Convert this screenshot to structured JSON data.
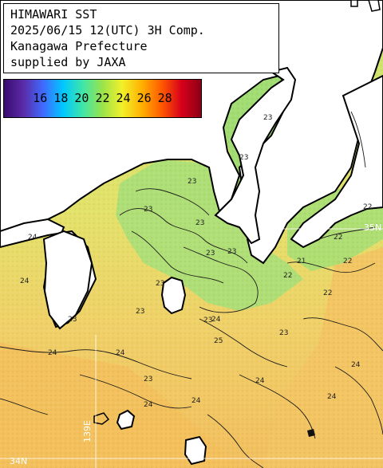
{
  "header": {
    "line1": "HIMAWARI SST",
    "line2": "2025/06/15 12(UTC) 3H Comp.",
    "line3": "Kanagawa Prefecture",
    "line4": "supplied by JAXA"
  },
  "colorbar": {
    "labels": [
      "16",
      "18",
      "20",
      "22",
      "24",
      "26",
      "28"
    ],
    "colors": [
      "#3b0b6e",
      "#5a2ca8",
      "#3f6bff",
      "#00c8ff",
      "#3fe6a8",
      "#9be34a",
      "#f2f02a",
      "#ffb000",
      "#ff5a00",
      "#d8001a",
      "#8b0016"
    ]
  },
  "contours": {
    "labels": [
      "23",
      "23",
      "23",
      "23",
      "23",
      "22",
      "22",
      "22",
      "23",
      "23",
      "23",
      "22",
      "21",
      "22",
      "23",
      "23",
      "24",
      "24",
      "24",
      "24",
      "25",
      "23",
      "23",
      "24",
      "24",
      "24",
      "24",
      "24",
      "23",
      "24"
    ]
  },
  "grid": {
    "lat_label_right": "35N",
    "lat_label_left": "34N",
    "lon_label": "139E"
  },
  "colors": {
    "water_warm": "#f2c862",
    "water_mid": "#e8e06a",
    "water_cool": "#b8e37a",
    "land": "#ffffff",
    "coast": "#000000"
  }
}
